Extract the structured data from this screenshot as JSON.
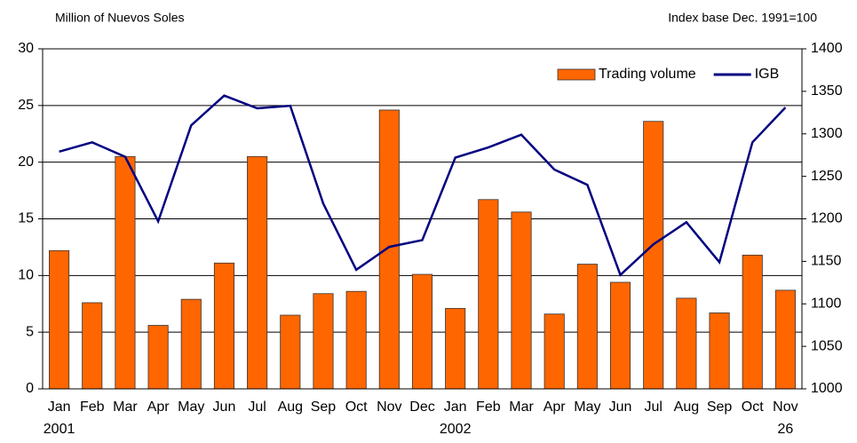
{
  "chart_data": {
    "type": "bar-line",
    "y_label": "Million of Nuevos Soles",
    "y2_label": "Index base Dec. 1991=100",
    "categories": [
      "Jan",
      "Feb",
      "Mar",
      "Apr",
      "May",
      "Jun",
      "Jul",
      "Aug",
      "Sep",
      "Oct",
      "Nov",
      "Dec",
      "Jan",
      "Feb",
      "Mar",
      "Apr",
      "May",
      "Jun",
      "Jul",
      "Aug",
      "Sep",
      "Oct",
      "Nov"
    ],
    "year_labels": [
      "2001",
      null,
      null,
      null,
      null,
      null,
      null,
      null,
      null,
      null,
      null,
      null,
      "2002",
      null,
      null,
      null,
      null,
      null,
      null,
      null,
      null,
      null,
      "26"
    ],
    "series": [
      {
        "name": "Trading volume",
        "type": "bar",
        "color": "#ff6600",
        "values": [
          12.2,
          7.6,
          20.5,
          5.6,
          7.9,
          11.1,
          20.5,
          6.5,
          8.4,
          8.6,
          24.6,
          10.1,
          7.1,
          16.7,
          15.6,
          6.6,
          11.0,
          9.4,
          23.6,
          8.0,
          6.7,
          11.8,
          8.7
        ]
      },
      {
        "name": "IGB",
        "type": "line",
        "axis": "y2",
        "color": "#000080",
        "values": [
          1279,
          1290,
          1273,
          1197,
          1310,
          1345,
          1330,
          1333,
          1218,
          1140,
          1167,
          1175,
          1272,
          1284,
          1299,
          1258,
          1240,
          1134,
          1170,
          1196,
          1149,
          1290,
          1331
        ]
      }
    ],
    "ylim": [
      0,
      30
    ],
    "yticks": [
      0,
      5,
      10,
      15,
      20,
      25,
      30
    ],
    "y2lim": [
      1000,
      1400
    ],
    "y2ticks": [
      1000,
      1050,
      1100,
      1150,
      1200,
      1250,
      1300,
      1350,
      1400
    ],
    "grid": true,
    "legend": "top-right"
  }
}
